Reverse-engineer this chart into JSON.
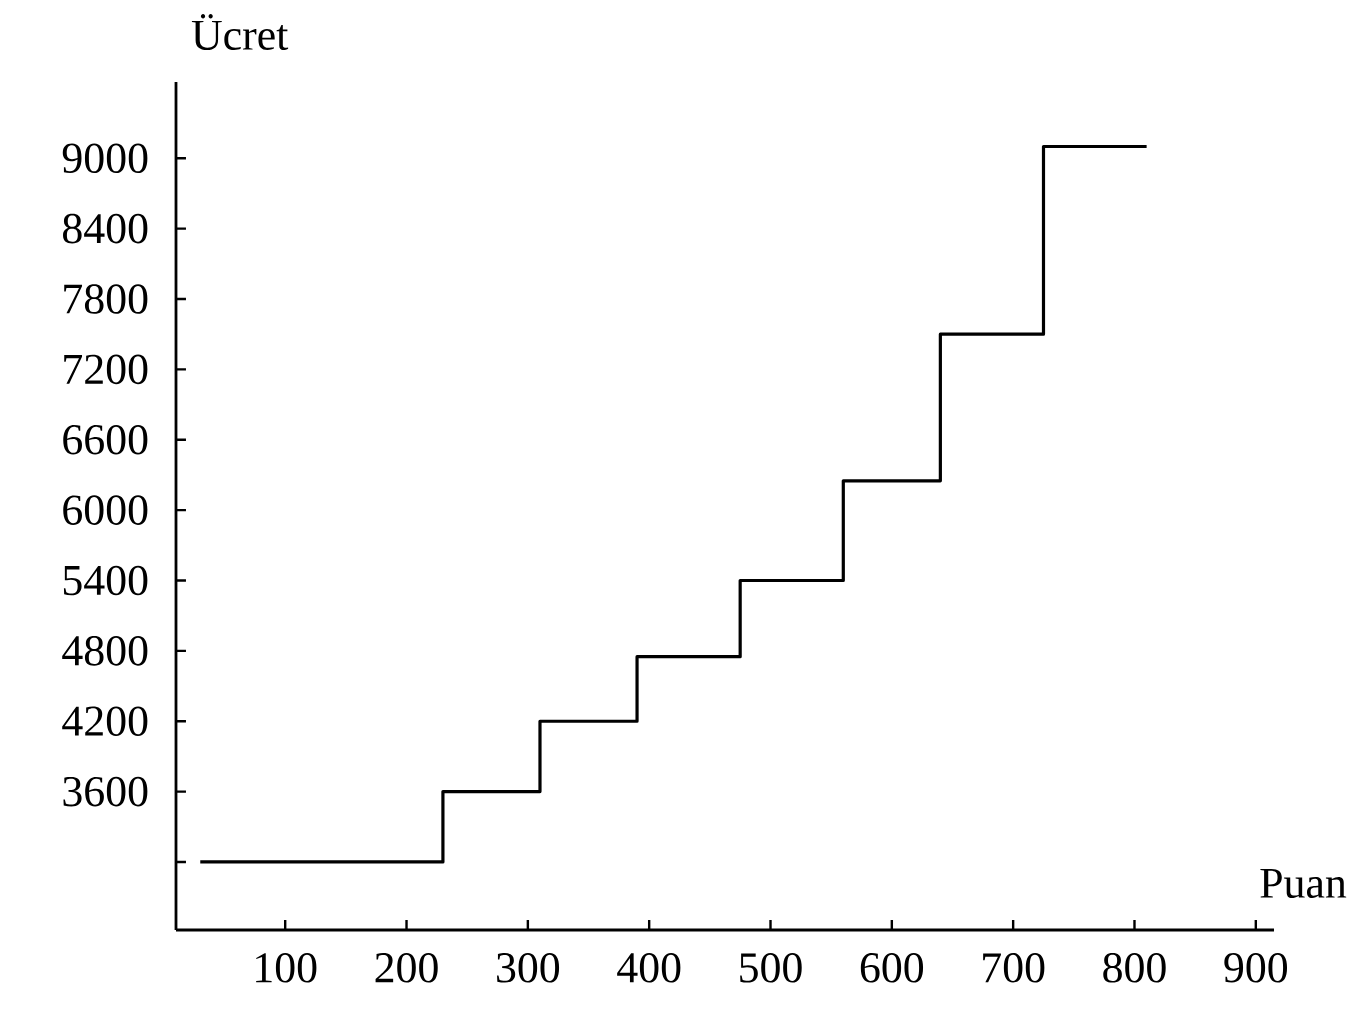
{
  "chart_data": {
    "type": "step",
    "xlabel": "Puan",
    "ylabel": "Ücret",
    "x": [
      30,
      230,
      310,
      390,
      475,
      560,
      640,
      725,
      810
    ],
    "values": [
      3000,
      3600,
      4200,
      4750,
      5400,
      6250,
      7500,
      9100,
      9100
    ],
    "color": "#000000",
    "xlim": [
      10,
      915
    ],
    "ylim": [
      2420,
      9650
    ],
    "xticks": [
      100,
      200,
      300,
      400,
      500,
      600,
      700,
      800,
      900
    ],
    "yticks": [
      {
        "value": 3000,
        "label": null
      },
      3600,
      4200,
      4800,
      5400,
      6000,
      6600,
      7200,
      7800,
      8400,
      9000
    ]
  }
}
